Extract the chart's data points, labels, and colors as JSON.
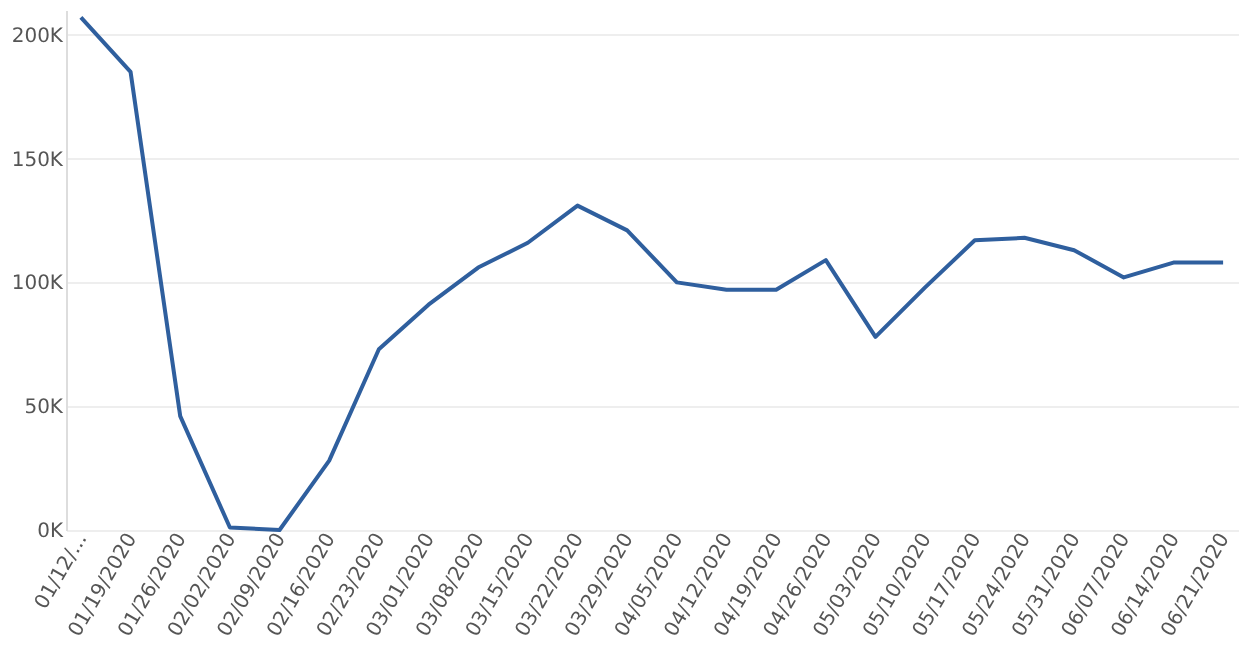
{
  "chart_data": {
    "type": "line",
    "categories": [
      "01/12/...",
      "01/19/2020",
      "01/26/2020",
      "02/02/2020",
      "02/09/2020",
      "02/16/2020",
      "02/23/2020",
      "03/01/2020",
      "03/08/2020",
      "03/15/2020",
      "03/22/2020",
      "03/29/2020",
      "04/05/2020",
      "04/12/2020",
      "04/19/2020",
      "04/26/2020",
      "05/03/2020",
      "05/10/2020",
      "05/17/2020",
      "05/24/2020",
      "05/31/2020",
      "06/07/2020",
      "06/14/2020",
      "06/21/2020"
    ],
    "series": [
      {
        "color": "#2f5f9e",
        "values": [
          207000,
          185000,
          46000,
          1000,
          0,
          28000,
          73000,
          91000,
          106000,
          116000,
          131000,
          121000,
          100000,
          97000,
          97000,
          109000,
          78000,
          98000,
          117000,
          118000,
          113000,
          102000,
          108000,
          108000
        ]
      }
    ],
    "ylim": [
      0,
      210000
    ],
    "yticks": [
      {
        "value": 0,
        "label": "0K"
      },
      {
        "value": 50000,
        "label": "50K"
      },
      {
        "value": 100000,
        "label": "100K"
      },
      {
        "value": 150000,
        "label": "150K"
      },
      {
        "value": 200000,
        "label": "200K"
      }
    ],
    "grid": "y",
    "marker": "none",
    "line_style": "solid",
    "legend": false
  }
}
